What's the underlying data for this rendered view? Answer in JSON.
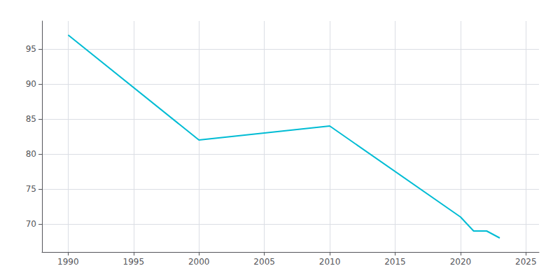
{
  "chart_data": {
    "type": "line",
    "x": [
      1990,
      2000,
      2005,
      2010,
      2020,
      2021,
      2022,
      2023
    ],
    "values": [
      97,
      82,
      83,
      84,
      71,
      69,
      69,
      68
    ],
    "color": "#00bcd4",
    "xlim": [
      1988,
      2026
    ],
    "ylim": [
      66,
      99
    ],
    "xticks": [
      1990,
      1995,
      2000,
      2005,
      2010,
      2015,
      2020,
      2025
    ],
    "yticks": [
      70,
      75,
      80,
      85,
      90,
      95
    ],
    "grid": true
  }
}
